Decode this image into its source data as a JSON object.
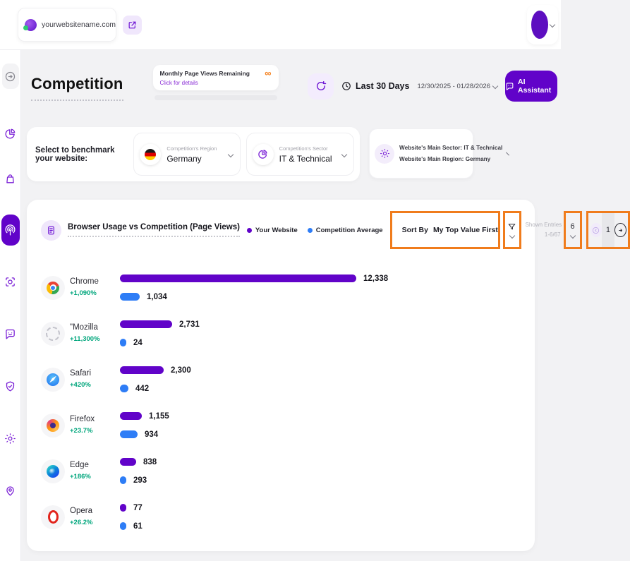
{
  "topbar": {
    "website_url": "yourwebsitename.com"
  },
  "sidebar": {
    "items": [
      {
        "id": "collapse",
        "icon": "ic-arrow-circle",
        "active": false,
        "style": "first"
      },
      {
        "id": "analytics",
        "icon": "ic-pie",
        "active": false,
        "style": ""
      },
      {
        "id": "orders",
        "icon": "ic-bag",
        "active": false,
        "style": ""
      },
      {
        "id": "competition",
        "icon": "ic-radar",
        "active": true,
        "style": ""
      },
      {
        "id": "scan",
        "icon": "ic-scan",
        "active": false,
        "style": "late"
      },
      {
        "id": "chat",
        "icon": "ic-chat",
        "active": false,
        "style": "late"
      },
      {
        "id": "security",
        "icon": "ic-shield",
        "active": false,
        "style": "late"
      },
      {
        "id": "settings",
        "icon": "ic-gear",
        "active": false,
        "style": "late"
      },
      {
        "id": "location",
        "icon": "ic-pin",
        "active": false,
        "style": "late"
      }
    ]
  },
  "header": {
    "title": "Competition",
    "page_views_label": "Monthly Page Views Remaining",
    "page_views_link": "Click for details",
    "page_views_badge": "∞",
    "period_label": "Last 30 Days",
    "date_range": "12/30/2025 - 01/28/2026",
    "ai_assistant_label": "AI Assistant"
  },
  "benchmark": {
    "label": "Select to benchmark your website:",
    "region": {
      "label": "Competition's Region",
      "value": "Germany"
    },
    "sector": {
      "label": "Competition's Sector",
      "value": "IT & Technical"
    },
    "website": {
      "line1": "Website's Main Sector: IT & Technical",
      "line2": "Website's Main Region: Germany"
    }
  },
  "chart": {
    "sort_by_label": "Sort By",
    "sort_by_value": "My Top Value First",
    "shown_entries_label": "Shown Entries",
    "shown_entries_value": "1-6/67",
    "page_size": "6",
    "current_page": "1"
  },
  "chart_data": {
    "type": "bar",
    "orientation": "horizontal",
    "title": "Browser Usage vs Competition (Page Views)",
    "categories": [
      "Chrome",
      "\"Mozilla",
      "Safari",
      "Firefox",
      "Edge",
      "Opera"
    ],
    "series": [
      {
        "name": "Your Website",
        "color": "#6103c9",
        "values": [
          12338,
          2731,
          2300,
          1155,
          838,
          77
        ],
        "labels": [
          "12,338",
          "2,731",
          "2,300",
          "1,155",
          "838",
          "77"
        ]
      },
      {
        "name": "Competition Average",
        "color": "#2e7df6",
        "values": [
          1034,
          24,
          442,
          934,
          293,
          61
        ],
        "labels": [
          "1,034",
          "24",
          "442",
          "934",
          "293",
          "61"
        ]
      }
    ],
    "change_vs_competition": [
      "+1,090%",
      "+11,300%",
      "+420%",
      "+23.7%",
      "+186%",
      "+26.2%"
    ],
    "icons": [
      "bi-chrome",
      "bi-mozilla",
      "bi-safari",
      "bi-firefox",
      "bi-edge",
      "bi-opera"
    ],
    "xlim": [
      0,
      12500
    ],
    "legend_position": "top",
    "grid": false
  },
  "icons": {
    "website-globe-icon": "globe",
    "open-external-icon": "arrow-out-of-box",
    "user-avatar": "purple-circle",
    "refresh-icon": "circular-arrow",
    "clock-icon": "clock",
    "ai-chat-icon": "chat-bubble",
    "chart-doc-icon": "document",
    "sort-sliders-icon": "vertical-sliders",
    "filter-icon": "funnel",
    "germany-flag-icon": "german-flag-circle",
    "sector-pie-icon": "pie-chart",
    "website-settings-icon": "gear",
    "prev-page-icon": "arrow-left-circle",
    "next-page-icon": "arrow-right-circle"
  },
  "colors": {
    "accent_purple": "#6103c9",
    "light_purple": "#f0e7fc",
    "bar_your_website": "#6103c9",
    "bar_competition": "#2e7df6",
    "positive_green": "#00a67c",
    "annotation_orange": "#f07c1c"
  }
}
